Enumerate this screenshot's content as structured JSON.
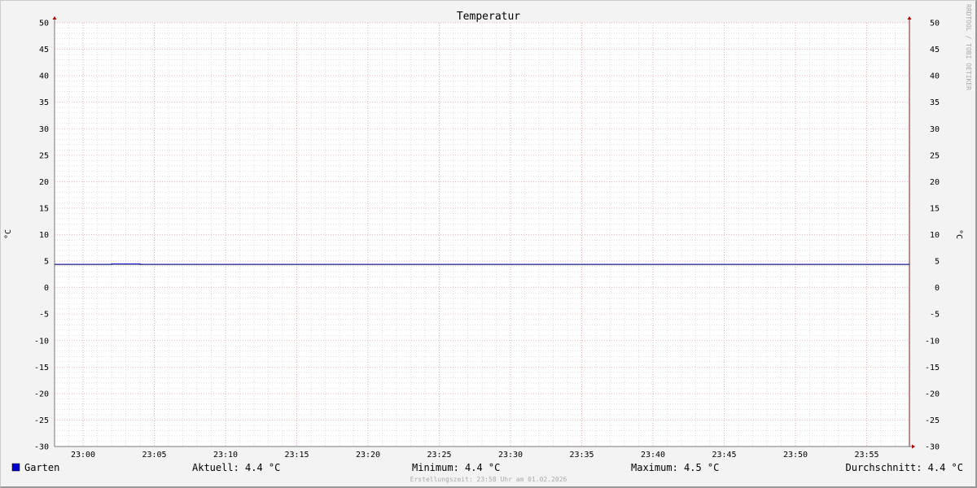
{
  "chart_data": {
    "type": "line",
    "title": "Temperatur",
    "ylabel": "°C",
    "ylabel_right": "°C",
    "ylim": [
      -30,
      50
    ],
    "yticks": [
      50,
      45,
      40,
      35,
      30,
      25,
      20,
      15,
      10,
      5,
      0,
      -5,
      -10,
      -15,
      -20,
      -25,
      -30
    ],
    "xlim": [
      "22:58",
      "23:58"
    ],
    "xticks": [
      "23:00",
      "23:05",
      "23:10",
      "23:15",
      "23:20",
      "23:25",
      "23:30",
      "23:35",
      "23:40",
      "23:45",
      "23:50",
      "23:55"
    ],
    "grid": true,
    "series": [
      {
        "name": "Garten",
        "color": "#0000cc",
        "x": [
          "22:58",
          "23:02",
          "23:02",
          "23:04",
          "23:04",
          "23:58"
        ],
        "y": [
          4.4,
          4.4,
          4.5,
          4.5,
          4.4,
          4.4
        ]
      }
    ],
    "legend": {
      "series_label": "Garten",
      "current": "Aktuell: 4.4 °C",
      "minimum": "Minimum: 4.4 °C",
      "maximum": "Maximum: 4.5 °C",
      "average": "Durchschnitt: 4.4 °C"
    },
    "footer": "Erstellungszeit: 23:58 Uhr am 01.02.2026",
    "watermark": "RRDTOOL / TOBI OETIKER"
  }
}
